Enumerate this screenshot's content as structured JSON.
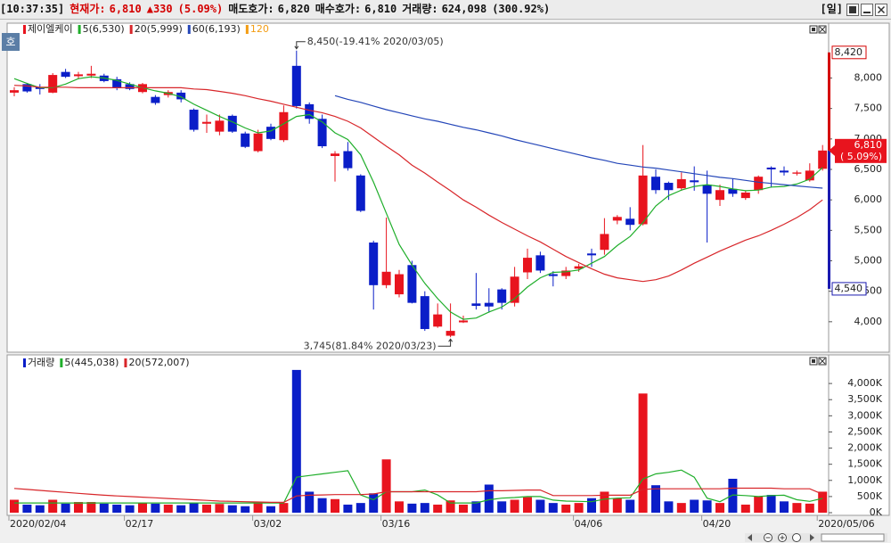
{
  "header": {
    "time": "[10:37:35]",
    "price_label": "현재가:",
    "price": "6,810",
    "change": "▲330",
    "change_pct": "(5.09%)",
    "ask_label": "매도호가:",
    "ask": "6,820",
    "bid_label": "매수호가:",
    "bid": "6,810",
    "volume_label": "거래량:",
    "volume": "624,098",
    "volume_pct": "(300.92%)",
    "period": "[일]",
    "badge": "호"
  },
  "chart_data": [
    {
      "type": "candlestick",
      "name": "제이엘케이",
      "up_color": "#e8141e",
      "down_color": "#0a1ec8",
      "open": [
        7760,
        7900,
        7850,
        7760,
        8100,
        8030,
        8040,
        8040,
        7980,
        7900,
        7770,
        7690,
        7720,
        7760,
        7480,
        7250,
        7120,
        7380,
        7090,
        6800,
        7200,
        6980,
        8200,
        7570,
        7330,
        6720,
        6800,
        6400,
        5300,
        4600,
        4450,
        4930,
        4420,
        3920,
        3770,
        3990,
        4300,
        4310,
        4530,
        4310,
        4810,
        5090,
        4780,
        4750,
        4870,
        5120,
        5180,
        5660,
        5690,
        5600,
        6380,
        6280,
        6190,
        6320,
        6250,
        6000,
        6180,
        6030,
        6160,
        6530,
        6480,
        6430,
        6320,
        6510
      ],
      "high": [
        7850,
        7920,
        7900,
        8080,
        8150,
        8100,
        8200,
        8070,
        8020,
        7930,
        7920,
        7720,
        7800,
        7800,
        7500,
        7400,
        7400,
        7400,
        7120,
        7150,
        7250,
        7550,
        8450,
        7600,
        7400,
        6800,
        6950,
        6420,
        5330,
        5710,
        4850,
        5000,
        4500,
        4300,
        4300,
        4100,
        4800,
        4550,
        4550,
        4900,
        5200,
        5150,
        4830,
        4900,
        4950,
        5200,
        5700,
        5750,
        5880,
        6900,
        6500,
        6300,
        6450,
        6550,
        6480,
        6250,
        6350,
        6150,
        6400,
        6550,
        6550,
        6480,
        6600,
        6900
      ],
      "low": [
        7700,
        7760,
        7730,
        7750,
        8000,
        7980,
        8000,
        7930,
        7800,
        7800,
        7750,
        7560,
        7680,
        7600,
        7120,
        7100,
        7060,
        7100,
        6850,
        6780,
        6980,
        6950,
        7500,
        7250,
        6850,
        6300,
        6480,
        5800,
        4200,
        4550,
        4400,
        4300,
        3850,
        3900,
        3745,
        3980,
        4200,
        4150,
        4200,
        4250,
        4700,
        4800,
        4580,
        4700,
        4820,
        4900,
        5100,
        5600,
        5500,
        5580,
        6100,
        6000,
        6150,
        6150,
        5300,
        5900,
        6050,
        6000,
        6100,
        6200,
        6400,
        6400,
        6300,
        6480
      ],
      "close": [
        7800,
        7780,
        7820,
        8050,
        8020,
        8060,
        8070,
        7950,
        7840,
        7820,
        7900,
        7590,
        7770,
        7650,
        7150,
        7280,
        7300,
        7120,
        6870,
        7090,
        7000,
        7440,
        7540,
        7330,
        6880,
        6760,
        6520,
        5820,
        4600,
        4820,
        4780,
        4310,
        3880,
        4120,
        3850,
        4020,
        4260,
        4250,
        4310,
        4740,
        5050,
        4840,
        4750,
        4840,
        4910,
        5090,
        5440,
        5720,
        5590,
        6400,
        6160,
        6160,
        6340,
        6290,
        6100,
        6160,
        6100,
        6120,
        6380,
        6500,
        6450,
        6450,
        6480,
        6810
      ],
      "series": [
        {
          "name": "5(6,530)",
          "color": "#1fae2a",
          "values": [
            7990,
            7910,
            7840,
            7840,
            7900,
            7990,
            8020,
            8000,
            7960,
            7900,
            7840,
            7790,
            7750,
            7690,
            7570,
            7470,
            7370,
            7280,
            7180,
            7100,
            7130,
            7250,
            7370,
            7400,
            7280,
            7100,
            6990,
            6740,
            6290,
            5780,
            5270,
            4930,
            4630,
            4380,
            4160,
            4040,
            4060,
            4160,
            4240,
            4380,
            4570,
            4720,
            4810,
            4820,
            4850,
            4960,
            5070,
            5250,
            5400,
            5630,
            5900,
            6070,
            6160,
            6220,
            6250,
            6220,
            6180,
            6150,
            6160,
            6210,
            6220,
            6260,
            6340,
            6530
          ]
        },
        {
          "name": "20(5,999)",
          "color": "#d8262a",
          "values": [
            7880,
            7870,
            7850,
            7850,
            7850,
            7840,
            7840,
            7840,
            7840,
            7840,
            7840,
            7840,
            7840,
            7840,
            7820,
            7810,
            7780,
            7750,
            7710,
            7660,
            7620,
            7570,
            7520,
            7470,
            7430,
            7370,
            7290,
            7180,
            7030,
            6880,
            6740,
            6570,
            6440,
            6290,
            6150,
            6000,
            5880,
            5750,
            5630,
            5520,
            5410,
            5310,
            5190,
            5070,
            4970,
            4870,
            4780,
            4720,
            4690,
            4660,
            4690,
            4750,
            4850,
            4960,
            5060,
            5160,
            5250,
            5340,
            5410,
            5500,
            5600,
            5710,
            5840,
            5999
          ]
        },
        {
          "name": "60(6,193)",
          "color": "#2446b8",
          "values": [
            null,
            null,
            null,
            null,
            null,
            null,
            null,
            null,
            null,
            null,
            null,
            null,
            null,
            null,
            null,
            null,
            null,
            null,
            null,
            null,
            null,
            null,
            null,
            null,
            null,
            7710,
            7650,
            7600,
            7540,
            7480,
            7430,
            7380,
            7330,
            7290,
            7240,
            7190,
            7150,
            7100,
            7050,
            6990,
            6940,
            6890,
            6840,
            6790,
            6740,
            6690,
            6650,
            6600,
            6570,
            6540,
            6520,
            6490,
            6460,
            6430,
            6400,
            6370,
            6350,
            6320,
            6290,
            6270,
            6250,
            6230,
            6210,
            6193
          ]
        }
      ],
      "legend_only": [
        {
          "name": "120",
          "color": "#f39c12"
        }
      ],
      "annotations": [
        {
          "label": "8,450(-19.41% 2020/03/05)",
          "value": 8450,
          "of": "high"
        },
        {
          "label": "3,745(81.84% 2020/03/23)",
          "value": 3745,
          "of": "low"
        }
      ],
      "markers": [
        {
          "value": 8420,
          "label": "8,420",
          "color": "#d40000"
        },
        {
          "value": 4540,
          "label": "4,540",
          "color": "#1a1ab0"
        }
      ],
      "last": {
        "value": 6810,
        "label": "6,810",
        "change": "( 5.09%)",
        "color": "#e8141e"
      },
      "ylim": [
        3500,
        8900
      ],
      "yticks": [
        {
          "value": 4000,
          "label": "4,000"
        },
        {
          "value": 4500,
          "label": "4,500"
        },
        {
          "value": 5000,
          "label": "5,000"
        },
        {
          "value": 5500,
          "label": "5,500"
        },
        {
          "value": 6000,
          "label": "6,000"
        },
        {
          "value": 6500,
          "label": "6,500"
        },
        {
          "value": 7000,
          "label": "7,000"
        },
        {
          "value": 7500,
          "label": "7,500"
        },
        {
          "value": 8000,
          "label": "8,000"
        }
      ]
    },
    {
      "type": "bar",
      "name": "거래량",
      "color": "#0a1ec8",
      "categories": [
        "2020/02/04",
        null,
        null,
        null,
        null,
        null,
        null,
        null,
        null,
        "02/17",
        null,
        null,
        null,
        null,
        null,
        null,
        null,
        null,
        null,
        "03/02",
        null,
        null,
        null,
        null,
        null,
        null,
        null,
        null,
        null,
        "03/16",
        null,
        null,
        null,
        null,
        null,
        null,
        null,
        null,
        null,
        null,
        null,
        null,
        null,
        null,
        "04/06",
        null,
        null,
        null,
        null,
        null,
        null,
        null,
        null,
        null,
        "04/20",
        null,
        null,
        null,
        null,
        null,
        null,
        null,
        null,
        "2020/05/06"
      ],
      "values": [
        400000,
        250000,
        230000,
        400000,
        280000,
        330000,
        330000,
        280000,
        250000,
        230000,
        300000,
        280000,
        250000,
        230000,
        300000,
        250000,
        270000,
        230000,
        200000,
        300000,
        200000,
        300000,
        4420000,
        650000,
        450000,
        420000,
        250000,
        300000,
        600000,
        1650000,
        350000,
        280000,
        300000,
        250000,
        380000,
        250000,
        350000,
        870000,
        350000,
        400000,
        480000,
        400000,
        300000,
        250000,
        300000,
        450000,
        650000,
        450000,
        400000,
        3690000,
        850000,
        350000,
        300000,
        400000,
        380000,
        300000,
        1050000,
        250000,
        500000,
        550000,
        350000,
        300000,
        280000,
        650000
      ],
      "series": [
        {
          "name": "5(445,038)",
          "color": "#1fae2a",
          "values": [
            300000,
            300000,
            300000,
            300000,
            300000,
            300000,
            300000,
            300000,
            300000,
            300000,
            300000,
            300000,
            300000,
            300000,
            300000,
            300000,
            300000,
            300000,
            300000,
            300000,
            300000,
            300000,
            1100000,
            1150000,
            1200000,
            1250000,
            1300000,
            550000,
            400000,
            650000,
            650000,
            650000,
            700000,
            550000,
            300000,
            300000,
            300000,
            400000,
            450000,
            470000,
            500000,
            500000,
            390000,
            360000,
            350000,
            340000,
            420000,
            450000,
            460000,
            1040000,
            1200000,
            1250000,
            1320000,
            1100000,
            450000,
            340000,
            550000,
            530000,
            500000,
            530000,
            540000,
            400000,
            350000,
            445038
          ]
        },
        {
          "name": "20(572,007)",
          "color": "#d8262a",
          "values": [
            750000,
            720000,
            690000,
            660000,
            630000,
            600000,
            570000,
            540000,
            520000,
            500000,
            480000,
            460000,
            440000,
            420000,
            400000,
            380000,
            360000,
            350000,
            340000,
            330000,
            320000,
            320000,
            520000,
            540000,
            550000,
            560000,
            560000,
            560000,
            580000,
            650000,
            650000,
            650000,
            650000,
            650000,
            650000,
            650000,
            650000,
            680000,
            680000,
            690000,
            700000,
            700000,
            530000,
            530000,
            530000,
            530000,
            540000,
            540000,
            540000,
            720000,
            740000,
            740000,
            740000,
            740000,
            740000,
            740000,
            760000,
            760000,
            760000,
            760000,
            740000,
            740000,
            740000,
            572007
          ]
        }
      ],
      "ylim": [
        0,
        4500000
      ],
      "yticks": [
        {
          "value": 0,
          "label": "0K"
        },
        {
          "value": 500000,
          "label": "500K"
        },
        {
          "value": 1000000,
          "label": "1,000K"
        },
        {
          "value": 1500000,
          "label": "1,500K"
        },
        {
          "value": 2000000,
          "label": "2,000K"
        },
        {
          "value": 2500000,
          "label": "2,500K"
        },
        {
          "value": 3000000,
          "label": "3,000K"
        },
        {
          "value": 3500000,
          "label": "3,500K"
        },
        {
          "value": 4000000,
          "label": "4,000K"
        }
      ]
    }
  ]
}
